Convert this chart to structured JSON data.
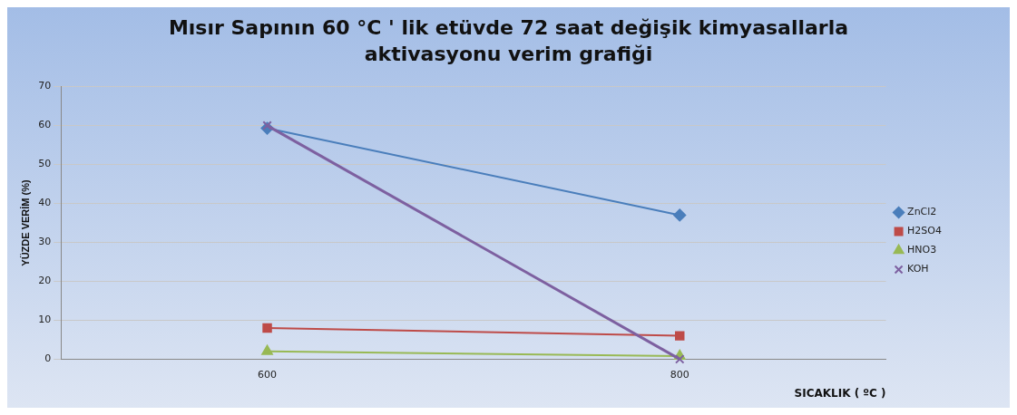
{
  "chart_data": {
    "type": "line",
    "title": "Mısır Sapının 60 °C ' lik etüvde 72 saat değişik kimyasallarla  aktivasyonu  verim grafiği",
    "xlabel": "SICAKLIK ( ºC )",
    "ylabel": "YÜZDE VERİM (%)",
    "categories": [
      "600",
      "800"
    ],
    "series": [
      {
        "name": "ZnCl2",
        "color": "#4a7ebb",
        "marker": "diamond",
        "values": [
          59.3,
          37
        ]
      },
      {
        "name": "H2SO4",
        "color": "#be4b48",
        "marker": "square",
        "values": [
          8,
          6
        ]
      },
      {
        "name": "HNO3",
        "color": "#98b954",
        "marker": "triangle",
        "values": [
          2,
          0.8
        ]
      },
      {
        "name": "KOH",
        "color": "#7d60a0",
        "marker": "cross",
        "values": [
          60,
          0
        ]
      }
    ],
    "ylim": [
      0,
      70
    ],
    "yticks": [
      0,
      10,
      20,
      30,
      40,
      50,
      60,
      70
    ],
    "grid": "y",
    "legend": "right"
  }
}
